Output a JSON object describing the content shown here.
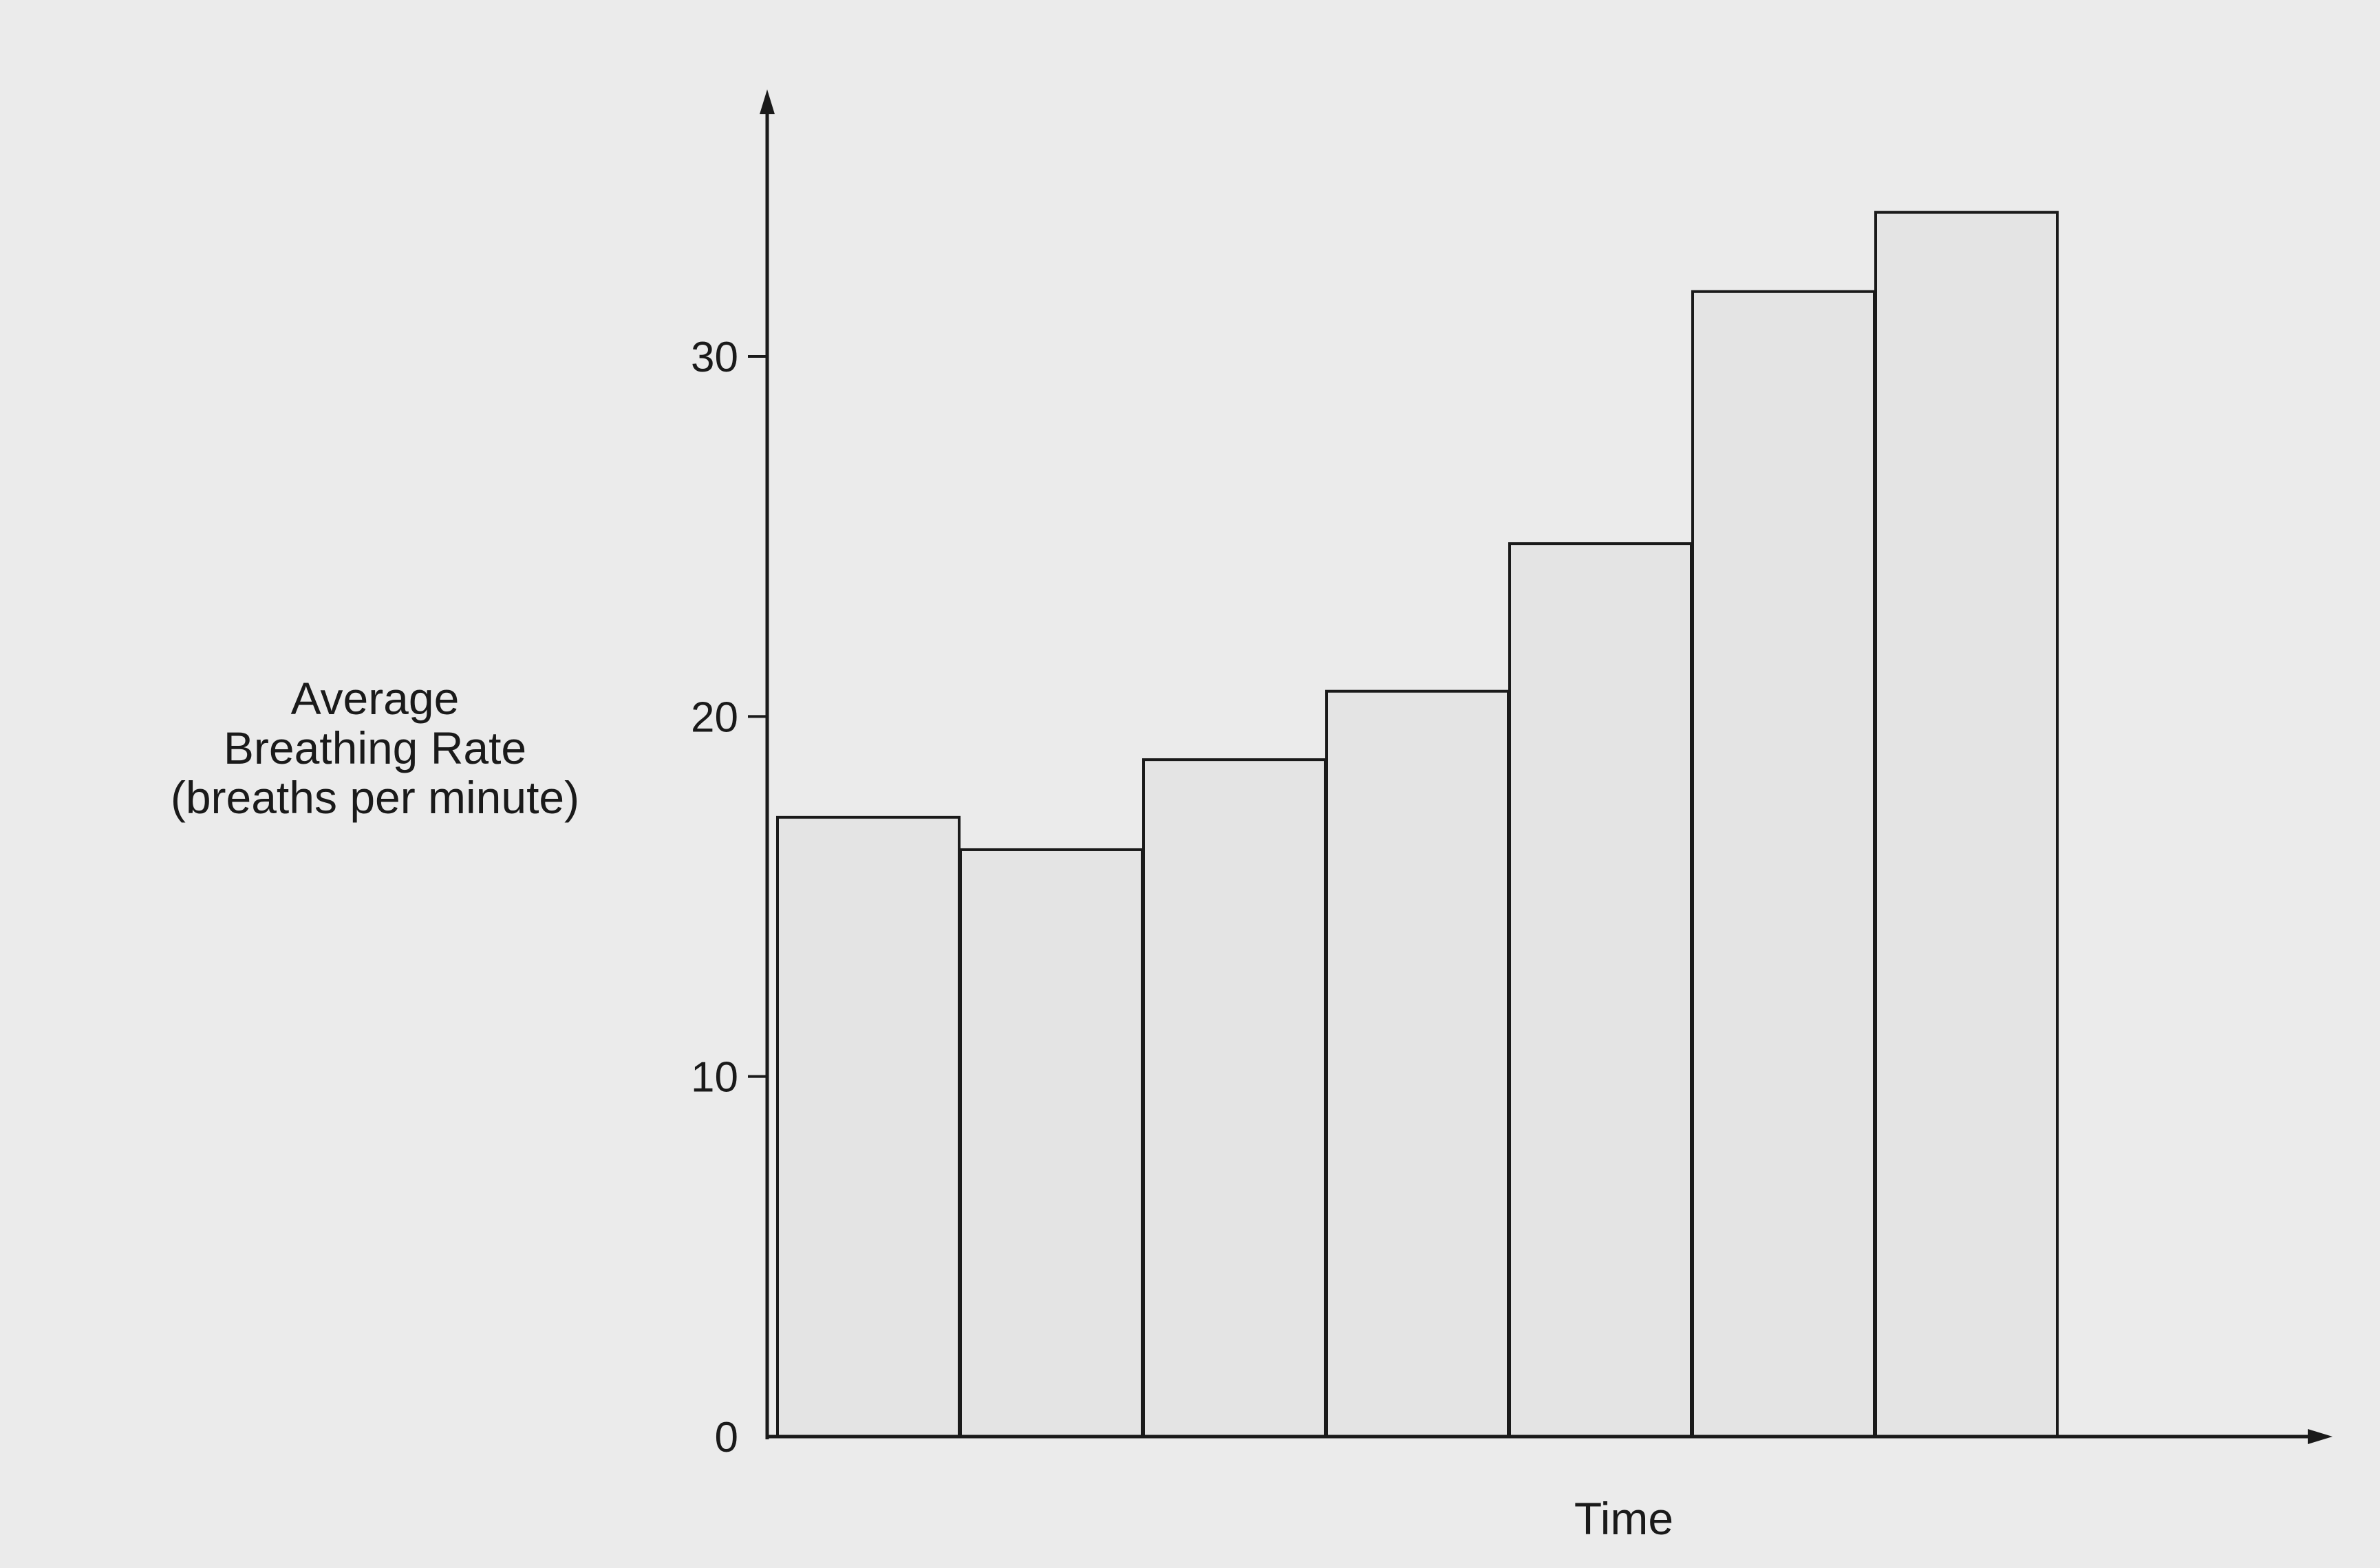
{
  "chart_data": {
    "type": "bar",
    "title": "",
    "xlabel": "Time",
    "ylabel_lines": [
      "Average",
      "Breathing Rate",
      "(breaths per minute)"
    ],
    "categories": [
      "",
      "",
      "",
      "",
      "",
      "",
      ""
    ],
    "values": [
      17.2,
      16.3,
      18.8,
      20.7,
      24.8,
      31.8,
      34.0
    ],
    "ylim": [
      0,
      37
    ],
    "yticks": [
      "0",
      "10",
      "20",
      "30"
    ],
    "grid": false,
    "legend": "none",
    "colors": {
      "background": "#ebebeb",
      "bar_fill": "#e4e4e4",
      "bar_stroke": "#1a1a1a",
      "axis": "#1a1a1a"
    }
  }
}
